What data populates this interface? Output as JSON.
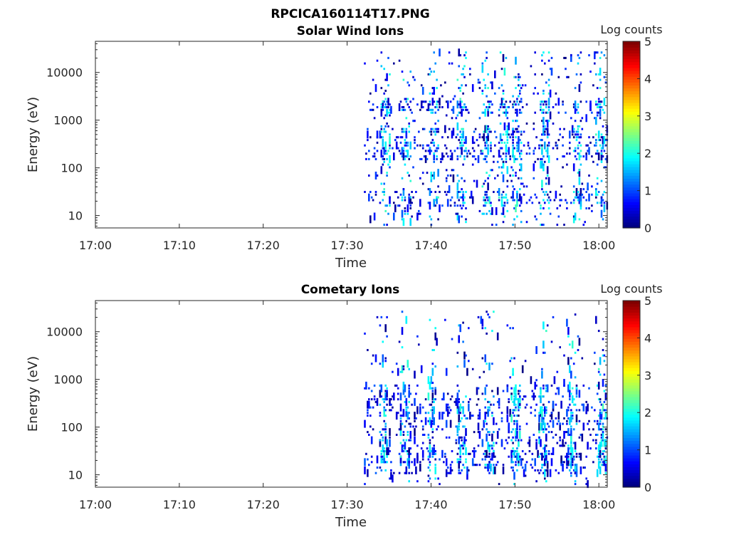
{
  "figure": {
    "title": "RPCICA160114T17.PNG"
  },
  "chart_data": [
    {
      "type": "heatmap",
      "title": "Solar Wind Ions",
      "xlabel": "Time",
      "ylabel": "Energy (eV)",
      "yscale": "log",
      "ylim": [
        5.5,
        45000
      ],
      "xlim": [
        "17:00",
        "18:01"
      ],
      "x_ticks": [
        "17:00",
        "17:10",
        "17:20",
        "17:30",
        "17:40",
        "17:50",
        "18:00"
      ],
      "y_ticks": [
        "10",
        "100",
        "1000",
        "10000"
      ],
      "colorbar": {
        "label": "Log counts",
        "range": [
          0,
          5
        ],
        "ticks": [
          "0",
          "1",
          "2",
          "3",
          "4",
          "5"
        ],
        "colormap": "jet"
      },
      "data_time_range": [
        "17:32",
        "18:01"
      ],
      "note_on_data": "sparse scatter of low counts (mostly 0-2 log counts), bands near 2000 eV, 300-500 eV and 20-30 eV"
    },
    {
      "type": "heatmap",
      "title": "Cometary Ions",
      "xlabel": "Time",
      "ylabel": "Energy (eV)",
      "yscale": "log",
      "ylim": [
        5.5,
        45000
      ],
      "xlim": [
        "17:00",
        "18:01"
      ],
      "x_ticks": [
        "17:00",
        "17:10",
        "17:20",
        "17:30",
        "17:40",
        "17:50",
        "18:00"
      ],
      "y_ticks": [
        "10",
        "100",
        "1000",
        "10000"
      ],
      "colorbar": {
        "label": "Log counts",
        "range": [
          0,
          5
        ],
        "ticks": [
          "0",
          "1",
          "2",
          "3",
          "4",
          "5"
        ],
        "colormap": "jet"
      },
      "data_time_range": [
        "17:32",
        "18:01"
      ],
      "note_on_data": "sparse low counts (mostly 0-2 log counts), enhanced between 10 and 700 eV"
    }
  ]
}
